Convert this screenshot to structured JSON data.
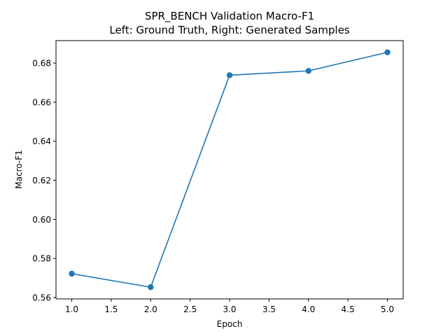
{
  "chart_data": {
    "type": "line",
    "title_line1": "SPR_BENCH Validation Macro-F1",
    "title_line2": "Left: Ground Truth, Right: Generated Samples",
    "xlabel": "Epoch",
    "ylabel": "Macro-F1",
    "x": [
      1,
      2,
      3,
      4,
      5
    ],
    "series": [
      {
        "values": [
          0.5722,
          0.5653,
          0.6738,
          0.676,
          0.6855
        ]
      }
    ],
    "xlim": [
      0.8,
      5.2
    ],
    "ylim": [
      0.5593,
      0.6915
    ],
    "xticks": [
      1.0,
      1.5,
      2.0,
      2.5,
      3.0,
      3.5,
      4.0,
      4.5,
      5.0
    ],
    "xtick_labels": [
      "1.0",
      "1.5",
      "2.0",
      "2.5",
      "3.0",
      "3.5",
      "4.0",
      "4.5",
      "5.0"
    ],
    "yticks": [
      0.56,
      0.58,
      0.6,
      0.62,
      0.64,
      0.66,
      0.68
    ],
    "ytick_labels": [
      "0.56",
      "0.58",
      "0.60",
      "0.62",
      "0.64",
      "0.66",
      "0.68"
    ],
    "grid": false,
    "line_color": "#1f77b4"
  }
}
